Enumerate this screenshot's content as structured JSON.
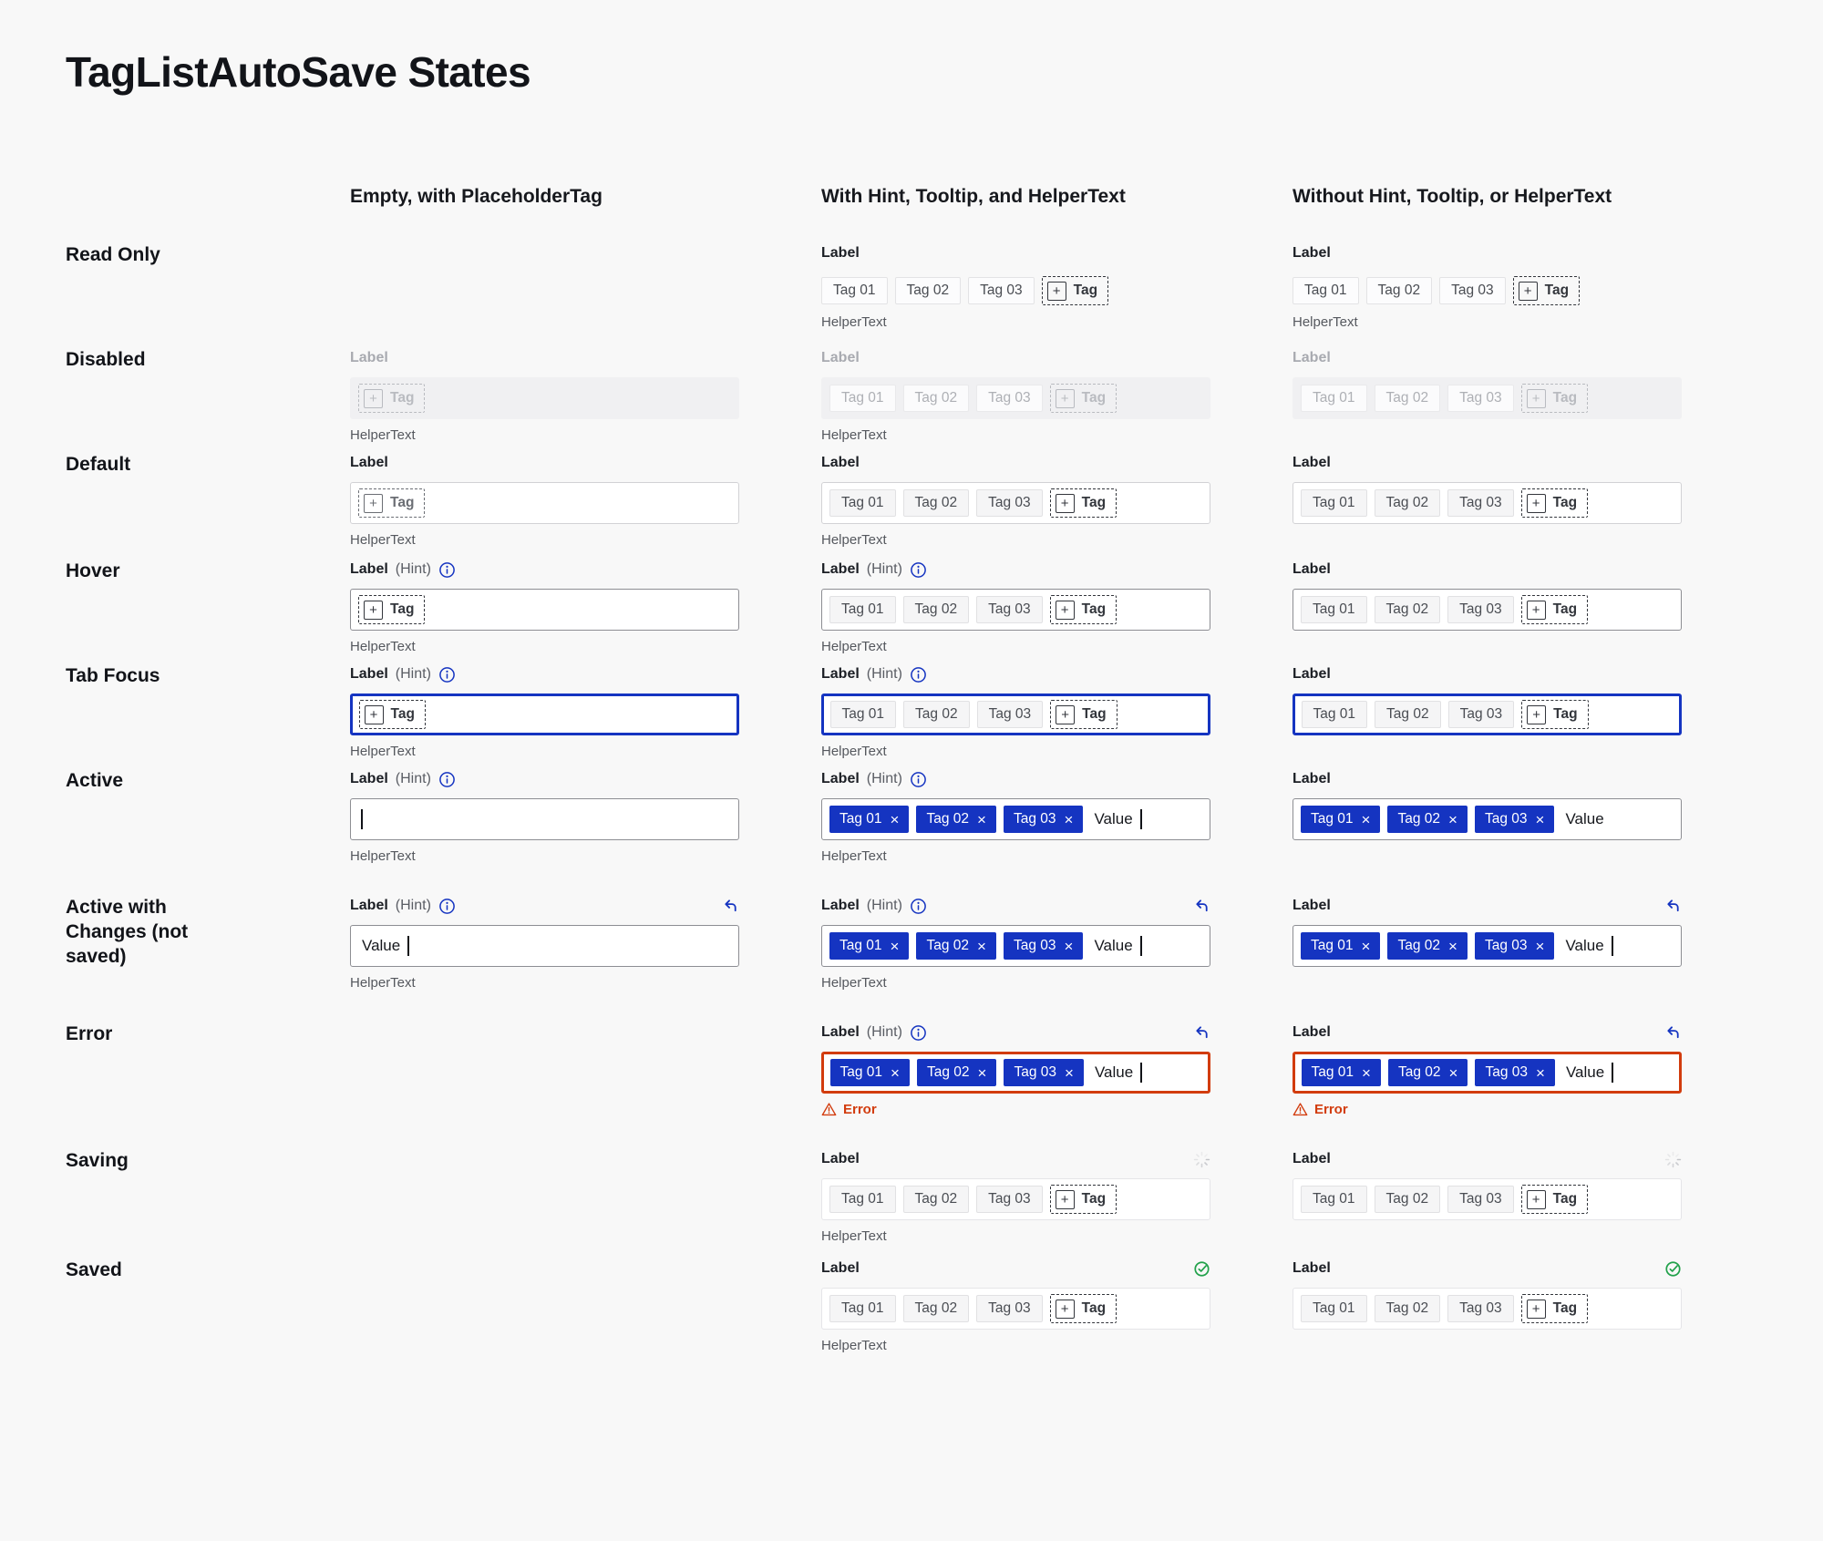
{
  "page": {
    "title": "TagListAutoSave States",
    "background": "#f8f8f8"
  },
  "columns": [
    {
      "label": "Empty, with PlaceholderTag"
    },
    {
      "label": "With Hint, Tooltip, and HelperText"
    },
    {
      "label": "Without Hint, Tooltip, or HelperText"
    }
  ],
  "strings": {
    "label": "Label",
    "hint": "(Hint)",
    "helper": "HelperText",
    "error": "Error",
    "value": "Value",
    "add_tag": "Tag",
    "plus_icon": "+",
    "remove_icon": "×",
    "tags": [
      "Tag 01",
      "Tag 02",
      "Tag 03"
    ]
  },
  "colors": {
    "accent_blue": "#1534c1",
    "error_red": "#d23c0e",
    "success_green": "#21a14a",
    "spinner_gray": "#c3c4c8",
    "page_background": "#f8f8f8"
  },
  "icons": {
    "info": "info-icon",
    "undo": "undo-icon",
    "spinner": "spinner-icon",
    "check": "check-circle-icon",
    "warning": "warning-icon"
  },
  "rows": [
    {
      "id": "read-only",
      "label": "Read Only",
      "cells": [
        null,
        {
          "label": "default",
          "box": "none",
          "tags": "gray",
          "add": "dark",
          "helper": true
        },
        {
          "label": "default",
          "box": "none",
          "tags": "gray",
          "add": "dark",
          "helper": true
        }
      ]
    },
    {
      "id": "disabled",
      "label": "Disabled",
      "cells": [
        {
          "label": "disabled",
          "box": "disabled",
          "add": "disabled",
          "helper": true
        },
        {
          "label": "disabled",
          "box": "disabled",
          "tags": "disabled",
          "add": "disabled",
          "helper": true
        },
        {
          "label": "disabled",
          "box": "disabled",
          "tags": "disabled",
          "add": "disabled"
        }
      ]
    },
    {
      "id": "default",
      "label": "Default",
      "cells": [
        {
          "label": "default",
          "box": "default",
          "add": "gray",
          "helper": true
        },
        {
          "label": "default",
          "box": "default",
          "tags": "gray",
          "add": "dark",
          "helper": true
        },
        {
          "label": "default",
          "box": "default",
          "tags": "gray",
          "add": "dark"
        }
      ]
    },
    {
      "id": "hover",
      "label": "Hover",
      "cells": [
        {
          "label": "default",
          "hint": true,
          "info": true,
          "box": "hover",
          "add": "dark",
          "helper": true
        },
        {
          "label": "default",
          "hint": true,
          "info": true,
          "box": "hover",
          "tags": "gray",
          "add": "dark",
          "helper": true
        },
        {
          "label": "default",
          "box": "hover",
          "tags": "gray",
          "add": "dark"
        }
      ]
    },
    {
      "id": "tab-focus",
      "label": "Tab Focus",
      "cells": [
        {
          "label": "default",
          "hint": true,
          "info": true,
          "box": "focus",
          "add": "dark",
          "helper": true
        },
        {
          "label": "default",
          "hint": true,
          "info": true,
          "box": "focus",
          "tags": "gray",
          "add": "dark",
          "helper": true
        },
        {
          "label": "default",
          "box": "focus",
          "tags": "gray",
          "add": "dark"
        }
      ]
    },
    {
      "id": "active",
      "label": "Active",
      "cells": [
        {
          "label": "default",
          "hint": true,
          "info": true,
          "box": "active",
          "caret": true,
          "helper": true
        },
        {
          "label": "default",
          "hint": true,
          "info": true,
          "box": "active",
          "tags": "blue",
          "value": true,
          "caret": true,
          "helper": true
        },
        {
          "label": "default",
          "box": "active",
          "tags": "blue",
          "value": true
        }
      ]
    },
    {
      "id": "active-changes",
      "label": "Active with Changes (not saved)",
      "cells": [
        {
          "label": "default",
          "hint": true,
          "info": true,
          "icon": "undo",
          "box": "active",
          "value": true,
          "caret": true,
          "helper": true
        },
        {
          "label": "default",
          "hint": true,
          "info": true,
          "icon": "undo",
          "box": "active",
          "tags": "blue",
          "value": true,
          "caret": true,
          "helper": true
        },
        {
          "label": "default",
          "icon": "undo",
          "box": "active",
          "tags": "blue",
          "value": true,
          "caret": true
        }
      ]
    },
    {
      "id": "error",
      "label": "Error",
      "cells": [
        null,
        {
          "label": "default",
          "hint": true,
          "info": true,
          "icon": "undo",
          "box": "error",
          "tags": "blue",
          "value": true,
          "caret": true,
          "error": true
        },
        {
          "label": "default",
          "icon": "undo",
          "box": "error",
          "tags": "blue",
          "value": true,
          "caret": true,
          "error": true
        }
      ]
    },
    {
      "id": "saving",
      "label": "Saving",
      "cells": [
        null,
        {
          "label": "default",
          "icon": "spinner",
          "box": "quiet",
          "tags": "gray",
          "add": "dark",
          "helper": true
        },
        {
          "label": "default",
          "icon": "spinner",
          "box": "quiet",
          "tags": "gray",
          "add": "dark"
        }
      ]
    },
    {
      "id": "saved",
      "label": "Saved",
      "cells": [
        null,
        {
          "label": "default",
          "icon": "check",
          "box": "quiet",
          "tags": "gray",
          "add": "dark",
          "helper": true
        },
        {
          "label": "default",
          "icon": "check",
          "box": "quiet",
          "tags": "gray",
          "add": "dark"
        }
      ]
    }
  ]
}
